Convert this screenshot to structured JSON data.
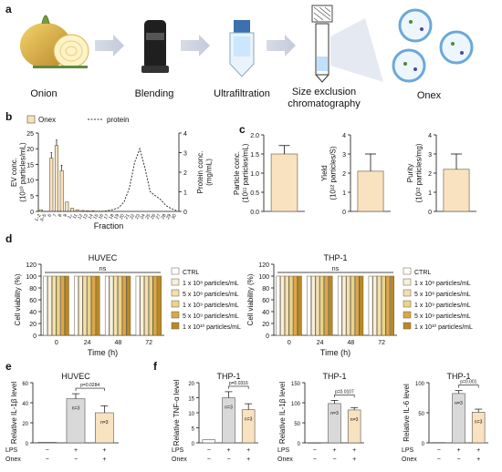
{
  "panels": {
    "a": "a",
    "b": "b",
    "c": "c",
    "d": "d",
    "e": "e",
    "f": "f"
  },
  "workflow": {
    "steps": [
      "Onion",
      "Blending",
      "Ultrafiltration",
      "Size exclusion",
      "chromatography",
      "Onex"
    ]
  },
  "colors": {
    "onex_bar": "#f8e2c0",
    "onex_edge": "#7a6a4a",
    "protein_line": "#333333",
    "ctrl": "#ffffff",
    "d1e8": "#f6f0dc",
    "d5e8": "#f1e0b2",
    "d1e9": "#e9d58b",
    "d5e9": "#dca64a",
    "d1e10": "#b98a24",
    "gray_bar": "#d9d9d9",
    "onex_f": "#f8e2c0"
  },
  "chart_data": [
    {
      "id": "b",
      "type": "bar",
      "legend": [
        "Onex",
        "protein"
      ],
      "xlabel": "Fraction",
      "ylabel": "EV conc.",
      "ylabel2": "(10¹⁰ particles/mL)",
      "y2label": "Protein conc.",
      "y2label2": "(mg/mL)",
      "ylim": [
        0,
        25
      ],
      "y2lim": [
        0,
        4
      ],
      "yticks": [
        "0",
        "5",
        "10",
        "15",
        "20",
        "25"
      ],
      "y2ticks": [
        "0",
        "1",
        "2",
        "3",
        "4"
      ],
      "categories": [
        "1-2",
        "3-5",
        "6",
        "7",
        "8",
        "9",
        "10",
        "11",
        "12",
        "13",
        "14",
        "15",
        "16",
        "17",
        "18",
        "19",
        "20",
        "21",
        "22",
        "23",
        "24",
        "25",
        "26",
        "27",
        "28",
        "29",
        "30"
      ],
      "ticklabels": [
        "1–2",
        "3–5",
        "6",
        "7",
        "8",
        "9",
        "1₀",
        "11",
        "12",
        "13",
        "14",
        "15",
        "16",
        "17",
        "18",
        "19",
        "20",
        "21",
        "22",
        "23",
        "24",
        "25",
        "26",
        "27",
        "28",
        "29",
        "30"
      ],
      "values": [
        0.5,
        0,
        17,
        21,
        13,
        3,
        1,
        0.5,
        0.3,
        0.2,
        0.2,
        0.1,
        0.1,
        0.1,
        0,
        0,
        0,
        0,
        0,
        0,
        0,
        0,
        0,
        0,
        0,
        0,
        0
      ],
      "protein": [
        0,
        0,
        0,
        0,
        0,
        0,
        0,
        0,
        0,
        0,
        0,
        0,
        0,
        0.05,
        0.1,
        0.2,
        0.5,
        1.2,
        2.5,
        3.2,
        2.2,
        1.0,
        0.8,
        0.6,
        0.3,
        0.15,
        0.05
      ]
    },
    {
      "id": "c1",
      "type": "bar",
      "ylabel": "Particle conc.",
      "ylabel2": "(10¹¹ particles/mL)",
      "ylim": [
        0,
        2
      ],
      "yticks": [
        "0.0",
        "0.5",
        "1.0",
        "1.5",
        "2.0"
      ],
      "values": [
        1.5
      ],
      "err": [
        0.22
      ]
    },
    {
      "id": "c2",
      "type": "bar",
      "ylabel": "Yield",
      "ylabel2": "(10¹² particles/S)",
      "ylim": [
        0,
        4
      ],
      "yticks": [
        "0",
        "1",
        "2",
        "3",
        "4"
      ],
      "values": [
        2.1
      ],
      "err": [
        0.9
      ]
    },
    {
      "id": "c3",
      "type": "bar",
      "ylabel": "Purity",
      "ylabel2": "(10¹² particles/mg)",
      "ylim": [
        0,
        4
      ],
      "yticks": [
        "0",
        "1",
        "2",
        "3",
        "4"
      ],
      "values": [
        2.2
      ],
      "err": [
        0.8
      ]
    },
    {
      "id": "d1",
      "type": "bar",
      "title": "HUVEC",
      "ylabel": "Cell viability (%)",
      "xlabel": "Time (h)",
      "ylim": [
        0,
        120
      ],
      "yticks": [
        "0",
        "20",
        "40",
        "60",
        "80",
        "100",
        "120"
      ],
      "categories": [
        "0",
        "24",
        "48",
        "72"
      ],
      "ns": "ns",
      "value": 100
    },
    {
      "id": "d2",
      "type": "bar",
      "title": "THP-1",
      "ylabel": "Cell viability (%)",
      "xlabel": "Time (h)",
      "ylim": [
        0,
        120
      ],
      "yticks": [
        "0",
        "20",
        "40",
        "60",
        "80",
        "100",
        "120"
      ],
      "categories": [
        "0",
        "24",
        "48",
        "72"
      ],
      "ns": "ns",
      "value": 100
    },
    {
      "id": "e",
      "type": "bar",
      "title": "HUVEC",
      "ylabel": "Relative IL-1β  level",
      "ylim": [
        0,
        60
      ],
      "yticks": [
        "0",
        "20",
        "40",
        "60"
      ],
      "values": [
        0.5,
        44,
        30
      ],
      "err": [
        0,
        5,
        7
      ],
      "pval": "p=0.0284",
      "n": [
        "",
        "n=3",
        "n=3"
      ]
    },
    {
      "id": "f1",
      "type": "bar",
      "title": "THP-1",
      "ylabel": "Relative TNF-α  level",
      "ylim": [
        0,
        20
      ],
      "yticks": [
        "0",
        "5",
        "10",
        "15",
        "20"
      ],
      "values": [
        1,
        15,
        11
      ],
      "err": [
        0,
        2,
        2
      ],
      "pval": "p=0.0316",
      "n": [
        "",
        "n=3",
        "n=3"
      ]
    },
    {
      "id": "f2",
      "type": "bar",
      "title": "THP-1",
      "ylabel": "Relative IL-1β  level",
      "ylim": [
        0,
        150
      ],
      "yticks": [
        "0",
        "50",
        "100",
        "150"
      ],
      "values": [
        0.5,
        98,
        82
      ],
      "err": [
        0,
        8,
        6
      ],
      "pval": "p=0.0107",
      "n": [
        "",
        "n=3",
        "n=3"
      ]
    },
    {
      "id": "f3",
      "type": "bar",
      "title": "THP-1",
      "ylabel": "Relative IL-6  level",
      "ylim": [
        0,
        100
      ],
      "yticks": [
        "0",
        "50",
        "100"
      ],
      "values": [
        0.5,
        82,
        51
      ],
      "err": [
        0,
        5,
        5
      ],
      "pval": "p=0.001",
      "n": [
        "",
        "n=3",
        "n=3"
      ]
    }
  ],
  "d_legend": [
    "CTRL",
    "1 x 10⁸ particles/mL",
    "5 x 10⁸ particles/mL",
    "1 x 10⁹ particles/mL",
    "5 x 10⁹ particles/mL",
    "1 x 10¹⁰ particles/mL"
  ],
  "treat_rows": {
    "lps": "LPS",
    "onex": "Onex",
    "lps_vals": [
      "−",
      "+",
      "+"
    ],
    "onex_vals": [
      "−",
      "−",
      "+"
    ]
  }
}
